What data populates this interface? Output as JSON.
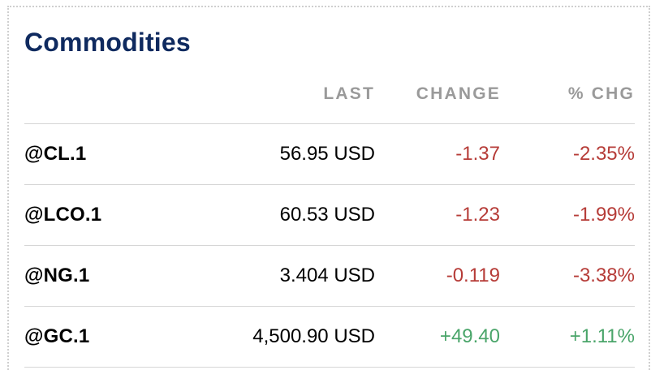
{
  "widget": {
    "title": "Commodities",
    "columns": {
      "last": "LAST",
      "change": "CHANGE",
      "pct_change": "% CHG"
    },
    "rows": [
      {
        "symbol": "@CL.1",
        "last": "56.95 USD",
        "change": "-1.37",
        "pct_change": "-2.35%",
        "direction": "down"
      },
      {
        "symbol": "@LCO.1",
        "last": "60.53 USD",
        "change": "-1.23",
        "pct_change": "-1.99%",
        "direction": "down"
      },
      {
        "symbol": "@NG.1",
        "last": "3.404 USD",
        "change": "-0.119",
        "pct_change": "-3.38%",
        "direction": "down"
      },
      {
        "symbol": "@GC.1",
        "last": "4,500.90 USD",
        "change": "+49.40",
        "pct_change": "+1.11%",
        "direction": "up"
      }
    ]
  },
  "colors": {
    "title": "#0f2a5f",
    "header": "#9a9a9a",
    "negative": "#b63c38",
    "positive": "#4aa56a",
    "divider": "#d6d6d6"
  }
}
